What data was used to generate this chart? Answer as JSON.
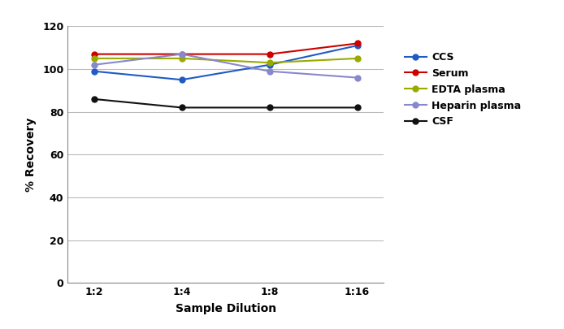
{
  "x_labels": [
    "1:2",
    "1:4",
    "1:8",
    "1:16"
  ],
  "x_positions": [
    0,
    1,
    2,
    3
  ],
  "series": [
    {
      "name": "CCS",
      "color": "#1f5bc4",
      "values": [
        99,
        95,
        102,
        111
      ]
    },
    {
      "name": "Serum",
      "color": "#cc0000",
      "values": [
        107,
        107,
        107,
        112
      ]
    },
    {
      "name": "EDTA plasma",
      "color": "#99aa00",
      "values": [
        105,
        105,
        103,
        105
      ]
    },
    {
      "name": "Heparin plasma",
      "color": "#8888cc",
      "values": [
        102,
        107,
        99,
        96
      ]
    },
    {
      "name": "CSF",
      "color": "#111111",
      "values": [
        86,
        82,
        82,
        82
      ]
    }
  ],
  "ylabel": "% Recovery",
  "xlabel": "Sample Dilution",
  "ylim": [
    0,
    120
  ],
  "yticks": [
    0,
    20,
    40,
    60,
    80,
    100,
    120
  ],
  "bg_color": "#ffffff",
  "grid_color": "#bbbbbb",
  "tick_fontsize": 9,
  "label_fontsize": 10,
  "legend_fontsize": 9
}
